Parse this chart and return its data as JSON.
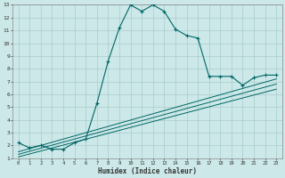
{
  "xlabel": "Humidex (Indice chaleur)",
  "bg_color": "#cce8e8",
  "grid_color": "#aacccc",
  "line_color": "#006666",
  "xlim": [
    -0.5,
    23.5
  ],
  "ylim": [
    1,
    13
  ],
  "curve1_x": [
    0,
    1,
    2,
    3,
    4,
    5,
    6,
    7,
    8,
    9,
    10,
    11,
    12,
    13,
    14,
    15,
    16,
    17,
    18,
    19,
    20,
    21,
    22,
    23
  ],
  "curve1_y": [
    2.2,
    1.8,
    2.0,
    1.7,
    1.7,
    2.2,
    2.5,
    5.3,
    8.6,
    11.2,
    13.0,
    12.5,
    13.0,
    12.5,
    11.1,
    10.6,
    10.4,
    7.4,
    7.4,
    7.4,
    6.7,
    7.3,
    7.5,
    7.5
  ],
  "curve2_x": [
    0,
    23
  ],
  "curve2_y": [
    1.5,
    7.2
  ],
  "curve3_x": [
    0,
    23
  ],
  "curve3_y": [
    1.3,
    6.8
  ],
  "curve4_x": [
    0,
    23
  ],
  "curve4_y": [
    1.1,
    6.4
  ],
  "xtick_vals": [
    0,
    1,
    2,
    3,
    4,
    5,
    6,
    7,
    8,
    9,
    10,
    11,
    12,
    13,
    14,
    15,
    16,
    17,
    18,
    19,
    20,
    21,
    22,
    23
  ],
  "xtick_labels": [
    "0",
    "1",
    "2",
    "3",
    "4",
    "5",
    "6",
    "7",
    "8",
    "9",
    "10",
    "11",
    "12",
    "13",
    "14",
    "15",
    "16",
    "17",
    "18",
    "19",
    "20",
    "21",
    "22",
    "23"
  ],
  "ytick_vals": [
    1,
    2,
    3,
    4,
    5,
    6,
    7,
    8,
    9,
    10,
    11,
    12,
    13
  ],
  "ytick_labels": [
    "1",
    "2",
    "3",
    "4",
    "5",
    "6",
    "7",
    "8",
    "9",
    "10",
    "11",
    "12",
    "13"
  ]
}
